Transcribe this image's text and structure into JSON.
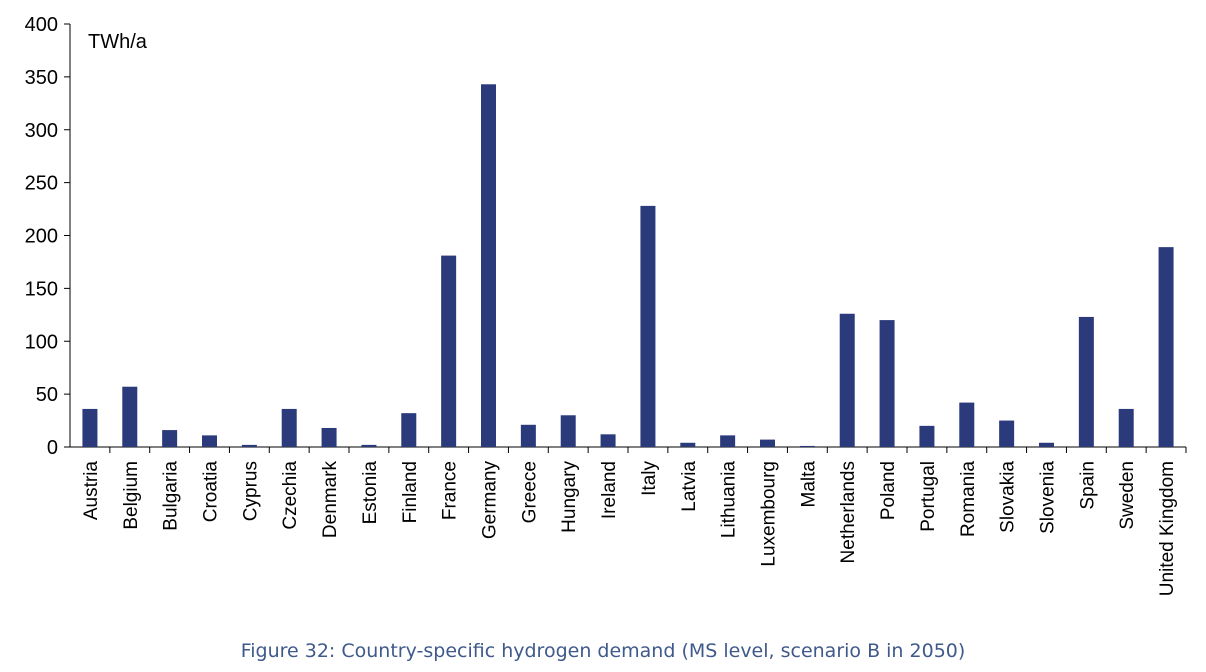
{
  "caption": "Figure 32: Country-specific hydrogen demand (MS level, scenario B in 2050)",
  "chart_data": {
    "type": "bar",
    "ylabel": "TWh/a",
    "ylim": [
      0,
      400
    ],
    "yticks": [
      0,
      50,
      100,
      150,
      200,
      250,
      300,
      350,
      400
    ],
    "bar_color": "#2b3a7a",
    "categories": [
      "Austria",
      "Belgium",
      "Bulgaria",
      "Croatia",
      "Cyprus",
      "Czechia",
      "Denmark",
      "Estonia",
      "Finland",
      "France",
      "Germany",
      "Greece",
      "Hungary",
      "Ireland",
      "Italy",
      "Latvia",
      "Lithuania",
      "Luxembourg",
      "Malta",
      "Netherlands",
      "Poland",
      "Portugal",
      "Romania",
      "Slovakia",
      "Slovenia",
      "Spain",
      "Sweden",
      "United Kingdom"
    ],
    "values": [
      36,
      57,
      16,
      11,
      2,
      36,
      18,
      2,
      32,
      181,
      343,
      21,
      30,
      12,
      228,
      4,
      11,
      7,
      1,
      126,
      120,
      20,
      42,
      25,
      4,
      123,
      36,
      189
    ]
  }
}
